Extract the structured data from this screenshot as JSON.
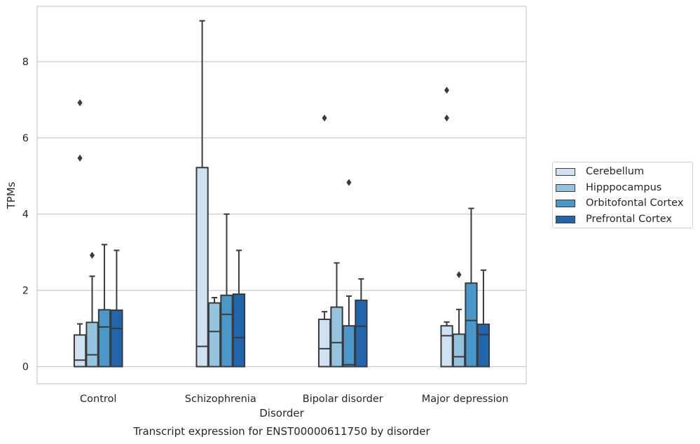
{
  "chart_data": {
    "type": "box",
    "caption": "Transcript expression for ENST00000611750 by disorder",
    "xlabel": "Disorder",
    "ylabel": "TPMs",
    "categories": [
      "Control",
      "Schizophrenia",
      "Bipolar disorder",
      "Major depression"
    ],
    "ylim": [
      -0.45,
      9.45
    ],
    "yticks": [
      0,
      2,
      4,
      6,
      8
    ],
    "grid": true,
    "legend_placement": "right, outside",
    "series": [
      {
        "name": "Cerebellum",
        "color": "#d0e1f2",
        "boxes": [
          {
            "q1": 0,
            "median": 0.17,
            "q3": 0.83,
            "whisker_low": 0,
            "whisker_high": 1.12,
            "outliers": [
              5.47,
              6.92
            ]
          },
          {
            "q1": 0,
            "median": 0.53,
            "q3": 5.22,
            "whisker_low": 0,
            "whisker_high": 9.07,
            "outliers": []
          },
          {
            "q1": 0,
            "median": 0.47,
            "q3": 1.24,
            "whisker_low": 0,
            "whisker_high": 1.44,
            "outliers": [
              6.52
            ]
          },
          {
            "q1": 0,
            "median": 0.81,
            "q3": 1.07,
            "whisker_low": 0,
            "whisker_high": 1.17,
            "outliers": [
              6.52,
              7.25
            ]
          }
        ]
      },
      {
        "name": "Hipppocampus",
        "color": "#94c4df",
        "boxes": [
          {
            "q1": 0,
            "median": 0.31,
            "q3": 1.16,
            "whisker_low": 0,
            "whisker_high": 2.37,
            "outliers": [
              2.92
            ]
          },
          {
            "q1": 0,
            "median": 0.92,
            "q3": 1.67,
            "whisker_low": 0,
            "whisker_high": 1.81,
            "outliers": []
          },
          {
            "q1": 0,
            "median": 0.63,
            "q3": 1.56,
            "whisker_low": 0,
            "whisker_high": 2.72,
            "outliers": []
          },
          {
            "q1": 0,
            "median": 0.26,
            "q3": 0.85,
            "whisker_low": 0,
            "whisker_high": 1.5,
            "outliers": [
              2.41
            ]
          }
        ]
      },
      {
        "name": "Orbitofontal Cortex",
        "color": "#4a98c9",
        "boxes": [
          {
            "q1": 0,
            "median": 1.04,
            "q3": 1.49,
            "whisker_low": 0,
            "whisker_high": 3.2,
            "outliers": []
          },
          {
            "q1": 0,
            "median": 1.37,
            "q3": 1.87,
            "whisker_low": 0,
            "whisker_high": 4.0,
            "outliers": []
          },
          {
            "q1": 0,
            "median": 0.05,
            "q3": 1.07,
            "whisker_low": 0,
            "whisker_high": 1.85,
            "outliers": [
              4.83
            ]
          },
          {
            "q1": 0,
            "median": 1.21,
            "q3": 2.19,
            "whisker_low": 0,
            "whisker_high": 4.15,
            "outliers": []
          }
        ]
      },
      {
        "name": "Prefrontal Cortex",
        "color": "#2166ac",
        "boxes": [
          {
            "q1": 0,
            "median": 1.0,
            "q3": 1.48,
            "whisker_low": 0,
            "whisker_high": 3.05,
            "outliers": []
          },
          {
            "q1": 0,
            "median": 0.76,
            "q3": 1.9,
            "whisker_low": 0,
            "whisker_high": 3.05,
            "outliers": []
          },
          {
            "q1": 0,
            "median": 1.06,
            "q3": 1.74,
            "whisker_low": 0,
            "whisker_high": 2.3,
            "outliers": []
          },
          {
            "q1": 0,
            "median": 0.84,
            "q3": 1.11,
            "whisker_low": 0,
            "whisker_high": 2.53,
            "outliers": []
          }
        ]
      }
    ]
  }
}
